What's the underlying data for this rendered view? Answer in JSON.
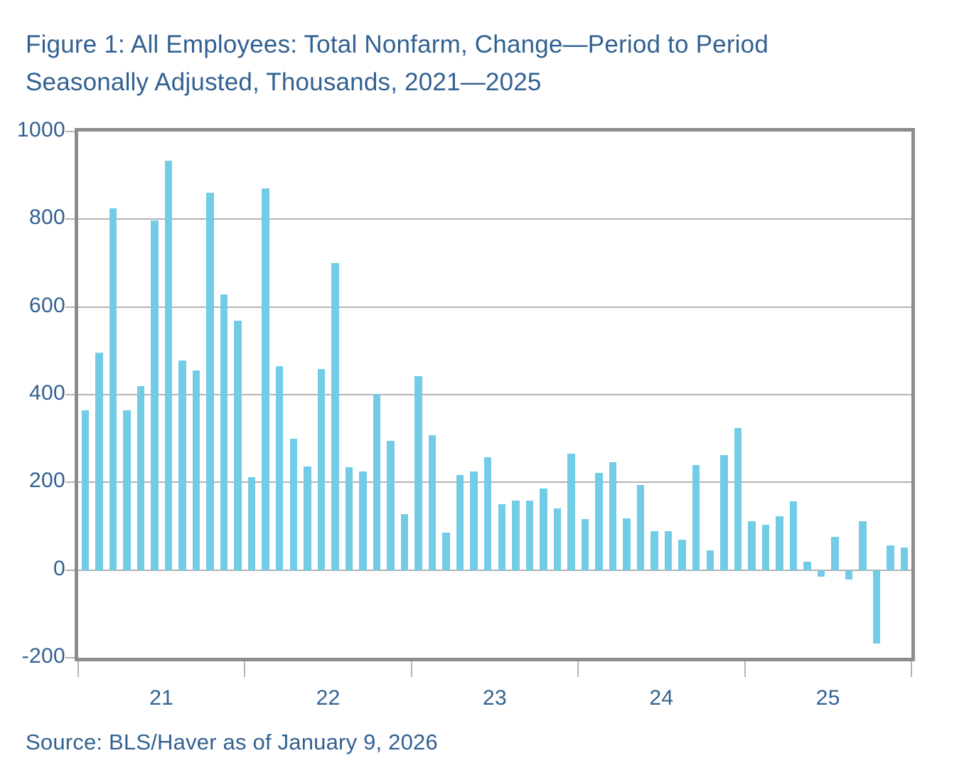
{
  "title": {
    "line1": "Figure 1: All Employees: Total Nonfarm, Change—Period to Period",
    "line2": "Seasonally Adjusted, Thousands, 2021—2025"
  },
  "source": "Source: BLS/Haver as of January 9, 2026",
  "colors": {
    "text_blue": "#326191",
    "bar_fill": "#73CCE6",
    "gridline": "#B3B3B3",
    "frame": "#8C8C8C",
    "background": "#FFFFFF"
  },
  "chart_data": {
    "type": "bar",
    "title": "All Employees: Total Nonfarm, Change—Period to Period, Seasonally Adjusted, Thousands, 2021—2025",
    "xlabel": "",
    "ylabel": "",
    "ylim": [
      -200,
      1000
    ],
    "yticks": [
      1000,
      800,
      600,
      400,
      200,
      0,
      -200
    ],
    "ytick_labels": [
      "1000",
      "800",
      "600",
      "400",
      "200",
      "0",
      "-200"
    ],
    "xtick_labels": [
      "21",
      "22",
      "23",
      "24",
      "25"
    ],
    "grid": "horizontal",
    "legend": "none",
    "frequency": "monthly",
    "categories": [
      "2021-01",
      "2021-02",
      "2021-03",
      "2021-04",
      "2021-05",
      "2021-06",
      "2021-07",
      "2021-08",
      "2021-09",
      "2021-10",
      "2021-11",
      "2021-12",
      "2022-01",
      "2022-02",
      "2022-03",
      "2022-04",
      "2022-05",
      "2022-06",
      "2022-07",
      "2022-08",
      "2022-09",
      "2022-10",
      "2022-11",
      "2022-12",
      "2023-01",
      "2023-02",
      "2023-03",
      "2023-04",
      "2023-05",
      "2023-06",
      "2023-07",
      "2023-08",
      "2023-09",
      "2023-10",
      "2023-11",
      "2023-12",
      "2024-01",
      "2024-02",
      "2024-03",
      "2024-04",
      "2024-05",
      "2024-06",
      "2024-07",
      "2024-08",
      "2024-09",
      "2024-10",
      "2024-11",
      "2024-12",
      "2025-01",
      "2025-02",
      "2025-03",
      "2025-04",
      "2025-05",
      "2025-06",
      "2025-07",
      "2025-08",
      "2025-09",
      "2025-10",
      "2025-11",
      "2025-12"
    ],
    "values": [
      365,
      495,
      825,
      365,
      420,
      798,
      933,
      478,
      455,
      860,
      628,
      568,
      212,
      870,
      465,
      300,
      237,
      458,
      700,
      235,
      225,
      402,
      295,
      128,
      442,
      307,
      86,
      216,
      225,
      257,
      150,
      158,
      158,
      186,
      140,
      265,
      117,
      222,
      246,
      118,
      194,
      89,
      89,
      69,
      240,
      45,
      262,
      324,
      112,
      104,
      122,
      157,
      19,
      -15,
      75,
      -21,
      111,
      -167,
      57,
      52
    ]
  }
}
